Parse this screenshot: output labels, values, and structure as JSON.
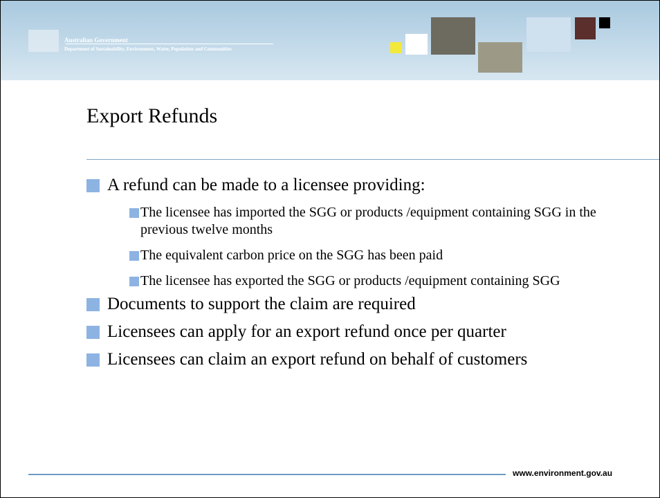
{
  "header": {
    "org": "Australian Government",
    "department": "Department of Sustainability, Environment, Water, Population and Communities"
  },
  "title": "Export Refunds",
  "bullets": [
    {
      "text": "A refund can be made to a licensee providing:",
      "sub": [
        "The licensee has imported the SGG or products /equipment containing SGG in the previous twelve months",
        "The equivalent carbon price on the SGG has been paid",
        "The licensee has exported the SGG or products /equipment containing SGG"
      ]
    },
    {
      "text": "Documents to support the claim are required"
    },
    {
      "text": "Licensees can apply for an export refund once per quarter"
    },
    {
      "text": "Licensees can claim an export refund on behalf of customers"
    }
  ],
  "footer": {
    "url": "www.environment.gov.au"
  }
}
